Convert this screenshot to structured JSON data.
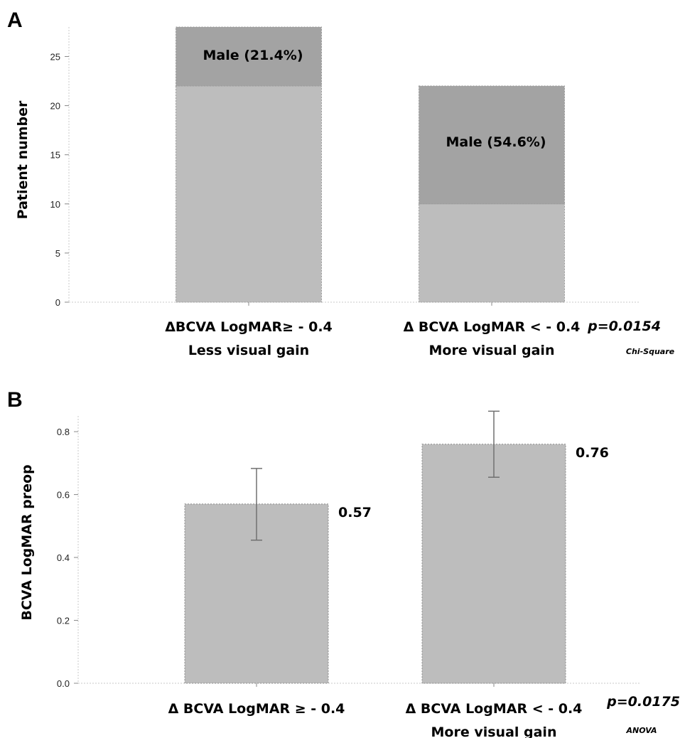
{
  "panels": {
    "a": {
      "letter": "A",
      "p_value": "p=0.0154",
      "test": "Chi-Square"
    },
    "b": {
      "letter": "B",
      "p_value": "p=0.0175",
      "test": "ANOVA"
    }
  },
  "colors": {
    "bar_light": "#bdbdbd",
    "bar_dark": "#a3a3a3",
    "axis": "#c8c8c8",
    "error_bar": "#707070"
  },
  "chart_data": [
    {
      "type": "bar",
      "stacked": true,
      "ylabel": "Patient number",
      "ylim": [
        0,
        28
      ],
      "yticks": [
        "0",
        "5",
        "10",
        "15",
        "20",
        "25"
      ],
      "ytick_values": [
        0,
        5,
        10,
        15,
        20,
        25
      ],
      "grid": false,
      "categories": [
        [
          "ΔBCVA LogMAR≥ - 0.4",
          "Less visual gain"
        ],
        [
          "Δ BCVA LogMAR < - 0.4",
          "More visual gain"
        ]
      ],
      "totals": [
        28,
        22
      ],
      "series": [
        {
          "values": [
            22,
            10
          ]
        },
        {
          "values": [
            6,
            12
          ],
          "labels": [
            "Male (21.4%)",
            "Male (54.6%)"
          ]
        }
      ]
    },
    {
      "type": "bar",
      "ylabel": "BCVA LogMAR preop",
      "ylim": [
        0,
        0.85
      ],
      "yticks": [
        "0.0",
        "0.2",
        "0.4",
        "0.6",
        "0.8"
      ],
      "ytick_values": [
        0,
        0.2,
        0.4,
        0.6,
        0.8
      ],
      "grid": false,
      "categories": [
        [
          "Δ BCVA LogMAR ≥ - 0.4",
          ""
        ],
        [
          "Δ BCVA LogMAR < - 0.4",
          "More visual gain"
        ]
      ],
      "values": [
        0.57,
        0.76
      ],
      "value_labels": [
        "0.57",
        "0.76"
      ],
      "error_low": [
        0.455,
        0.655
      ],
      "error_high": [
        0.683,
        0.865
      ]
    }
  ]
}
